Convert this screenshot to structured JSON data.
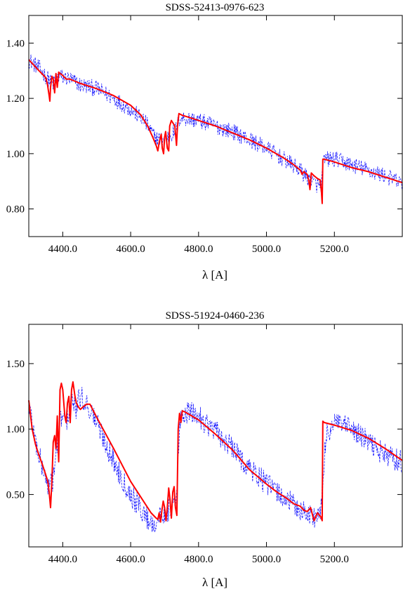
{
  "chart_data": [
    {
      "type": "line",
      "title": "SDSS-52413-0976-623",
      "xlabel": "λ [A]",
      "ylabel": "",
      "xlim": [
        4300,
        5400
      ],
      "ylim": [
        0.7,
        1.5
      ],
      "xticks": [
        4400.0,
        4600.0,
        4800.0,
        5000.0,
        5200.0
      ],
      "xtick_labels": [
        "4400.0",
        "4600.0",
        "4800.0",
        "5000.0",
        "5200.0"
      ],
      "yticks": [
        0.8,
        1.0,
        1.2,
        1.4
      ],
      "ytick_labels": [
        "0.80",
        "1.00",
        "1.20",
        "1.40"
      ],
      "grid": false,
      "series": [
        {
          "kind": "model",
          "color": "#ff0000",
          "x": [
            4300,
            4330,
            4350,
            4355,
            4360,
            4362,
            4364,
            4368,
            4372,
            4376,
            4380,
            4384,
            4388,
            4392,
            4398,
            4410,
            4420,
            4430,
            4440,
            4450,
            4500,
            4550,
            4600,
            4630,
            4650,
            4665,
            4675,
            4680,
            4684,
            4690,
            4693,
            4697,
            4700,
            4703,
            4708,
            4712,
            4715,
            4720,
            4730,
            4735,
            4738,
            4742,
            4750,
            4800,
            4850,
            4900,
            4950,
            5000,
            5050,
            5080,
            5100,
            5105,
            5110,
            5120,
            5125,
            5128,
            5132,
            5140,
            5150,
            5158,
            5162,
            5164,
            5166,
            5170,
            5200,
            5250,
            5300,
            5350,
            5400
          ],
          "y": [
            1.34,
            1.3,
            1.275,
            1.25,
            1.21,
            1.19,
            1.24,
            1.28,
            1.27,
            1.22,
            1.29,
            1.24,
            1.295,
            1.29,
            1.285,
            1.27,
            1.27,
            1.265,
            1.26,
            1.255,
            1.235,
            1.21,
            1.175,
            1.14,
            1.1,
            1.06,
            1.03,
            1.01,
            1.04,
            1.07,
            1.02,
            1.0,
            1.06,
            1.08,
            1.02,
            1.01,
            1.1,
            1.12,
            1.1,
            1.03,
            1.1,
            1.145,
            1.14,
            1.12,
            1.1,
            1.075,
            1.05,
            1.02,
            0.985,
            0.96,
            0.94,
            0.925,
            0.935,
            0.925,
            0.9,
            0.87,
            0.93,
            0.92,
            0.91,
            0.905,
            0.86,
            0.82,
            0.98,
            0.98,
            0.97,
            0.95,
            0.935,
            0.915,
            0.895
          ]
        },
        {
          "kind": "observed",
          "color": "#0000ff",
          "scatter": 0.03,
          "x": [
            4300,
            4330,
            4350,
            4370,
            4390,
            4420,
            4450,
            4500,
            4550,
            4600,
            4640,
            4670,
            4690,
            4710,
            4730,
            4745,
            4800,
            4850,
            4900,
            4950,
            5000,
            5050,
            5100,
            5130,
            5160,
            5170,
            5200,
            5250,
            5300,
            5350,
            5400
          ],
          "y": [
            1.34,
            1.31,
            1.28,
            1.25,
            1.28,
            1.27,
            1.25,
            1.235,
            1.2,
            1.16,
            1.12,
            1.06,
            1.05,
            1.06,
            1.08,
            1.13,
            1.12,
            1.1,
            1.08,
            1.05,
            1.02,
            0.98,
            0.94,
            0.9,
            0.88,
            0.98,
            0.98,
            0.96,
            0.94,
            0.92,
            0.89
          ]
        }
      ]
    },
    {
      "type": "line",
      "title": "SDSS-51924-0460-236",
      "xlabel": "λ [A]",
      "ylabel": "",
      "xlim": [
        4300,
        5400
      ],
      "ylim": [
        0.1,
        1.8
      ],
      "xticks": [
        4400.0,
        4600.0,
        4800.0,
        5000.0,
        5200.0
      ],
      "xtick_labels": [
        "4400.0",
        "4600.0",
        "4800.0",
        "5000.0",
        "5200.0"
      ],
      "yticks": [
        0.5,
        1.0,
        1.5
      ],
      "ytick_labels": [
        "0.50",
        "1.00",
        "1.50"
      ],
      "grid": false,
      "series": [
        {
          "kind": "model",
          "color": "#ff0000",
          "x": [
            4300,
            4310,
            4320,
            4330,
            4340,
            4350,
            4356,
            4360,
            4364,
            4368,
            4372,
            4376,
            4380,
            4384,
            4388,
            4392,
            4396,
            4400,
            4406,
            4410,
            4414,
            4418,
            4422,
            4426,
            4430,
            4436,
            4440,
            4446,
            4452,
            4460,
            4470,
            4480,
            4500,
            4550,
            4600,
            4640,
            4660,
            4675,
            4680,
            4684,
            4688,
            4692,
            4696,
            4700,
            4704,
            4708,
            4712,
            4716,
            4720,
            4724,
            4728,
            4732,
            4736,
            4740,
            4744,
            4748,
            4752,
            4760,
            4800,
            4850,
            4900,
            4950,
            5000,
            5030,
            5060,
            5080,
            5100,
            5110,
            5120,
            5130,
            5140,
            5150,
            5160,
            5164,
            5166,
            5170,
            5200,
            5250,
            5300,
            5350,
            5400
          ],
          "y": [
            1.22,
            1.0,
            0.88,
            0.8,
            0.73,
            0.65,
            0.6,
            0.52,
            0.4,
            0.6,
            0.9,
            0.95,
            0.85,
            1.1,
            0.75,
            1.3,
            1.35,
            1.3,
            1.1,
            1.05,
            1.2,
            1.25,
            1.05,
            1.3,
            1.36,
            1.25,
            1.2,
            1.17,
            1.15,
            1.17,
            1.19,
            1.19,
            1.09,
            0.85,
            0.6,
            0.44,
            0.36,
            0.32,
            0.31,
            0.36,
            0.29,
            0.38,
            0.45,
            0.4,
            0.3,
            0.4,
            0.55,
            0.46,
            0.32,
            0.52,
            0.56,
            0.4,
            0.34,
            1.0,
            1.12,
            1.05,
            1.14,
            1.13,
            1.07,
            0.96,
            0.84,
            0.69,
            0.58,
            0.52,
            0.47,
            0.43,
            0.41,
            0.38,
            0.37,
            0.4,
            0.3,
            0.36,
            0.33,
            0.3,
            1.06,
            1.05,
            1.03,
            0.99,
            0.93,
            0.85,
            0.76
          ]
        },
        {
          "kind": "observed",
          "color": "#0000ff",
          "scatter": 0.09,
          "x": [
            4300,
            4320,
            4340,
            4360,
            4370,
            4380,
            4395,
            4410,
            4425,
            4440,
            4450,
            4470,
            4500,
            4550,
            4600,
            4640,
            4660,
            4680,
            4700,
            4720,
            4735,
            4745,
            4760,
            4800,
            4850,
            4900,
            4950,
            5000,
            5050,
            5100,
            5140,
            5160,
            5175,
            5200,
            5250,
            5300,
            5350,
            5400
          ],
          "y": [
            1.2,
            0.9,
            0.7,
            0.55,
            0.6,
            0.8,
            1.1,
            1.05,
            1.2,
            1.15,
            1.25,
            1.2,
            1.05,
            0.75,
            0.5,
            0.35,
            0.28,
            0.3,
            0.36,
            0.4,
            0.45,
            1.05,
            1.13,
            1.1,
            0.98,
            0.85,
            0.7,
            0.58,
            0.48,
            0.38,
            0.33,
            0.35,
            0.95,
            1.05,
            1.0,
            0.9,
            0.8,
            0.75
          ]
        }
      ]
    }
  ]
}
